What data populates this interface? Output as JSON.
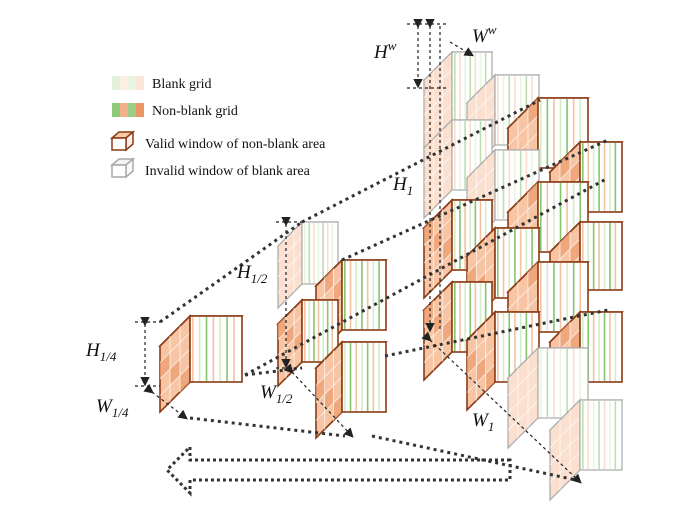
{
  "legend": {
    "blank_grid": "Blank grid",
    "non_blank_grid": "Non-blank grid",
    "valid_window": "Valid window of non-blank area",
    "invalid_window": "Invalid window of blank area"
  },
  "labels": {
    "hw": "H",
    "hw_sup": "w",
    "ww": "W",
    "ww_sup": "w",
    "h1": "H",
    "h1_sub": "1",
    "w1": "W",
    "w1_sub": "1",
    "h12": "H",
    "h12_sub": "1/2",
    "w12": "W",
    "w12_sub": "1/2",
    "h14": "H",
    "h14_sub": "1/4",
    "w14": "W",
    "w14_sub": "1/4"
  },
  "colors": {
    "valid_border": "#8b3a14",
    "invalid_border": "#a9a9a9",
    "orange_front": "#f7c5a4",
    "orange_dark": "#ec9f73",
    "pale_front": "#fbe0d0",
    "green_stripe": "#86c46e",
    "pale_green": "#d6ecc9",
    "side_light": "#fdf4ee"
  }
}
